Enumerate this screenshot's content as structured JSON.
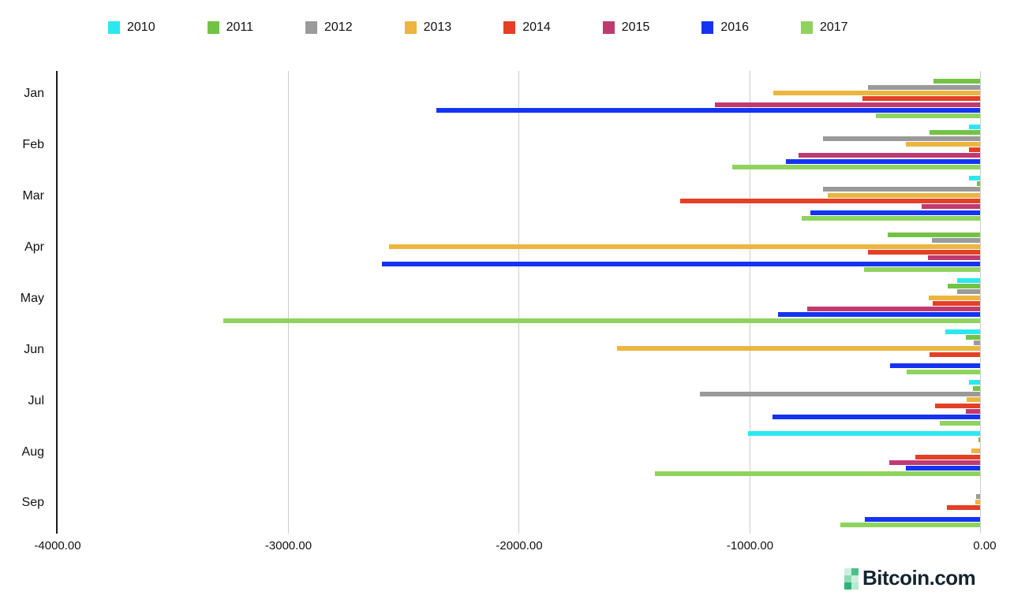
{
  "chart_data": {
    "type": "bar",
    "orientation": "horizontal",
    "title": "",
    "categories": [
      "Jan",
      "Feb",
      "Mar",
      "Apr",
      "May",
      "Jun",
      "Jul",
      "Aug",
      "Sep"
    ],
    "series": [
      {
        "name": "2010",
        "color": "#2BE8F0",
        "values": [
          0,
          -48,
          -48,
          0,
          -100,
          -150,
          -48,
          -1005,
          0
        ]
      },
      {
        "name": "2011",
        "color": "#72C344",
        "values": [
          -202,
          -219,
          -15,
          -400,
          -140,
          -62,
          -31,
          -8,
          0
        ]
      },
      {
        "name": "2012",
        "color": "#9A9A9A",
        "values": [
          -486,
          -680,
          -680,
          -209,
          -100,
          -27,
          -1214,
          0,
          -18
        ]
      },
      {
        "name": "2013",
        "color": "#EBB540",
        "values": [
          -895,
          -321,
          -660,
          -2560,
          -222,
          -1573,
          -58,
          -38,
          -20
        ]
      },
      {
        "name": "2014",
        "color": "#E34026",
        "values": [
          -509,
          -48,
          -1300,
          -486,
          -205,
          -219,
          -195,
          -280,
          -143
        ]
      },
      {
        "name": "2015",
        "color": "#C03A70",
        "values": [
          -1149,
          -786,
          -253,
          -226,
          -748,
          0,
          -62,
          -393,
          0
        ]
      },
      {
        "name": "2016",
        "color": "#1433F2",
        "values": [
          -2356,
          -841,
          -735,
          -2590,
          -875,
          -390,
          -900,
          -321,
          -499
        ]
      },
      {
        "name": "2017",
        "color": "#8FD35F",
        "values": [
          -451,
          -1074,
          -772,
          -503,
          -3280,
          -318,
          -174,
          -1410,
          -605
        ]
      }
    ],
    "x_axis": {
      "min": -4000,
      "max": 0,
      "tick_values": [
        -4000,
        -3000,
        -2000,
        -1000,
        0
      ],
      "tick_labels": [
        "-4000.00",
        "-3000.00",
        "-2000.00",
        "-1000.00",
        "0.00"
      ]
    },
    "legend_position": "top",
    "grid": true
  },
  "colors": {
    "grid": "#cccccc",
    "axis": "#1a1a1a",
    "text": "#111111"
  },
  "footer": {
    "logo_text": "Bitcoin.com",
    "logo_text_color": "#142530",
    "logo_icon_colors": [
      "#cdeedd",
      "#45c28b",
      "#8edbb8",
      "#cdeedd",
      "#2fb27a",
      "#b7e8d2"
    ]
  }
}
